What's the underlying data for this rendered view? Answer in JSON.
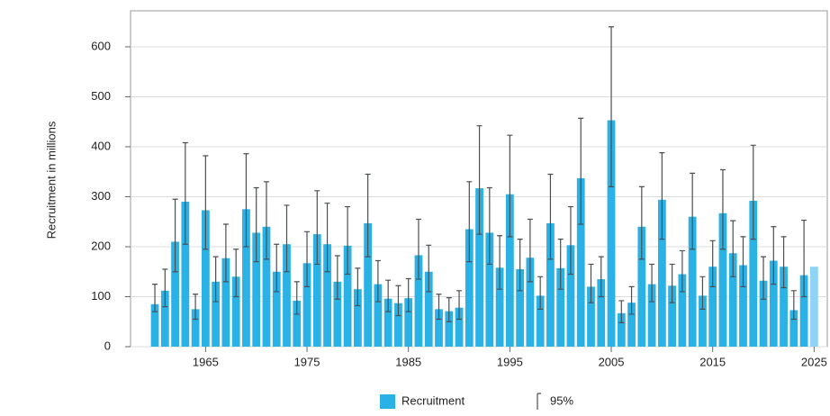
{
  "chart_data": {
    "type": "bar",
    "y_label": "Recruitment in millions",
    "x": [
      1960,
      1961,
      1962,
      1963,
      1964,
      1965,
      1966,
      1967,
      1968,
      1969,
      1970,
      1971,
      1972,
      1973,
      1974,
      1975,
      1976,
      1977,
      1978,
      1979,
      1980,
      1981,
      1982,
      1983,
      1984,
      1985,
      1986,
      1987,
      1988,
      1989,
      1990,
      1991,
      1992,
      1993,
      1994,
      1995,
      1996,
      1997,
      1998,
      1999,
      2000,
      2001,
      2002,
      2003,
      2004,
      2005,
      2006,
      2007,
      2008,
      2009,
      2010,
      2011,
      2012,
      2013,
      2014,
      2015,
      2016,
      2017,
      2018,
      2019,
      2020,
      2021,
      2022,
      2023,
      2024,
      2025
    ],
    "series": [
      {
        "name": "Recruitment",
        "color": "#2ab2e6",
        "values": [
          85,
          112,
          210,
          290,
          75,
          273,
          130,
          177,
          140,
          275,
          228,
          240,
          150,
          205,
          92,
          167,
          225,
          205,
          130,
          202,
          115,
          247,
          125,
          96,
          87,
          97,
          183,
          150,
          75,
          71,
          78,
          235,
          317,
          228,
          158,
          305,
          155,
          178,
          102,
          247,
          157,
          203,
          337,
          120,
          135,
          453,
          67,
          88,
          240,
          125,
          294,
          122,
          145,
          260,
          102,
          160,
          267,
          187,
          163,
          292,
          132,
          172,
          160,
          73,
          143,
          160
        ],
        "error_low": [
          70,
          80,
          150,
          205,
          55,
          195,
          90,
          130,
          100,
          200,
          170,
          175,
          110,
          150,
          65,
          120,
          165,
          150,
          95,
          145,
          82,
          180,
          90,
          70,
          62,
          70,
          135,
          110,
          55,
          50,
          55,
          170,
          225,
          165,
          115,
          220,
          112,
          130,
          75,
          175,
          115,
          145,
          245,
          88,
          100,
          320,
          48,
          65,
          175,
          90,
          215,
          88,
          110,
          195,
          75,
          120,
          195,
          140,
          120,
          215,
          95,
          125,
          118,
          55,
          100,
          null
        ],
        "error_high": [
          125,
          155,
          295,
          408,
          105,
          382,
          180,
          245,
          195,
          386,
          318,
          330,
          205,
          283,
          130,
          230,
          312,
          287,
          182,
          280,
          157,
          345,
          172,
          133,
          122,
          136,
          255,
          203,
          105,
          98,
          112,
          330,
          442,
          318,
          222,
          423,
          215,
          255,
          140,
          345,
          215,
          280,
          457,
          165,
          180,
          640,
          92,
          120,
          320,
          165,
          388,
          165,
          192,
          347,
          140,
          212,
          354,
          252,
          220,
          403,
          180,
          240,
          220,
          112,
          253,
          null
        ]
      }
    ],
    "highlight": {
      "x": 2025,
      "color": "#8fd4f4"
    },
    "error_label": "95%",
    "error_color": "#4a4f52",
    "xlim": [
      1957.6,
      2026.3
    ],
    "xticks": [
      1965,
      1975,
      1985,
      1995,
      2005,
      2015,
      2025
    ],
    "ylim": [
      0,
      672
    ],
    "yticks": [
      0,
      100,
      200,
      300,
      400,
      500,
      600
    ],
    "grid": true
  }
}
